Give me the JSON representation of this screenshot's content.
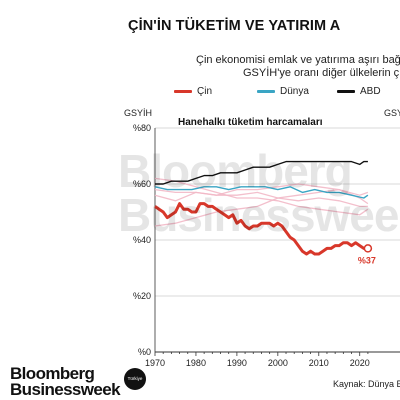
{
  "header": {
    "title": "ÇİN'İN TÜKETİM VE YATIRIM A",
    "subtitle_line1": "Çin ekonomisi emlak ve yatırıma aşırı bağ",
    "subtitle_line2": "GSYİH'ye oranı diğer ülkelerin ç"
  },
  "watermark": {
    "line1": "Bloomberg",
    "line2": "Businessweek"
  },
  "branding": {
    "logo_line1": "Bloomberg",
    "logo_line2": "Businessweek",
    "badge": "Türkiye"
  },
  "source": "Kaynak: Dünya B",
  "colors": {
    "cin": "#d8372a",
    "dunya": "#3aa5c4",
    "abd": "#111111",
    "background_lines": "#f2b8c6"
  },
  "chart_data": {
    "type": "line",
    "title": "Hanehalkı tüketim harcamaları",
    "ylabel": "GSYİH",
    "ylabel_right": "GSY",
    "xlim": [
      1970,
      2023
    ],
    "ylim": [
      0,
      80
    ],
    "x_ticks": [
      1970,
      1980,
      1990,
      2000,
      2010,
      2020
    ],
    "y_ticks": [
      0,
      20,
      40,
      60,
      80
    ],
    "y_tick_labels": [
      "%0",
      "%20",
      "%40",
      "%60",
      "%80"
    ],
    "grid": true,
    "legend_position": "top",
    "end_label": "%37",
    "series": [
      {
        "name": "Çin",
        "color": "#d8372a",
        "x": [
          1970,
          1971,
          1972,
          1973,
          1974,
          1975,
          1976,
          1977,
          1978,
          1979,
          1980,
          1981,
          1982,
          1983,
          1984,
          1985,
          1986,
          1987,
          1988,
          1989,
          1990,
          1991,
          1992,
          1993,
          1994,
          1995,
          1996,
          1997,
          1998,
          1999,
          2000,
          2001,
          2002,
          2003,
          2004,
          2005,
          2006,
          2007,
          2008,
          2009,
          2010,
          2011,
          2012,
          2013,
          2014,
          2015,
          2016,
          2017,
          2018,
          2019,
          2020,
          2021,
          2022
        ],
        "values": [
          52,
          51,
          50,
          48,
          49,
          50,
          53,
          51,
          51,
          50,
          50,
          53,
          53,
          52,
          52,
          51,
          50,
          49,
          48,
          49,
          46,
          47,
          45,
          44,
          45,
          45,
          46,
          46,
          46,
          45,
          46,
          45,
          43,
          41,
          40,
          38,
          36,
          35,
          36,
          35,
          35,
          36,
          37,
          37,
          38,
          38,
          39,
          39,
          38,
          39,
          38,
          37,
          37
        ]
      },
      {
        "name": "Dünya",
        "color": "#3aa5c4",
        "x": [
          1970,
          1973,
          1976,
          1979,
          1982,
          1985,
          1988,
          1991,
          1994,
          1997,
          2000,
          2003,
          2006,
          2009,
          2012,
          2015,
          2018,
          2021,
          2022
        ],
        "values": [
          59,
          58,
          58,
          58,
          59,
          59,
          58,
          59,
          59,
          59,
          58,
          59,
          57,
          58,
          57,
          57,
          56,
          55,
          56
        ]
      },
      {
        "name": "ABD",
        "color": "#111111",
        "x": [
          1970,
          1972,
          1974,
          1976,
          1978,
          1980,
          1982,
          1984,
          1986,
          1988,
          1990,
          1992,
          1994,
          1996,
          1998,
          2000,
          2002,
          2004,
          2006,
          2008,
          2010,
          2012,
          2014,
          2016,
          2018,
          2020,
          2021,
          2022
        ],
        "values": [
          60,
          60,
          61,
          61,
          61,
          62,
          63,
          63,
          64,
          64,
          64,
          65,
          66,
          66,
          66,
          67,
          68,
          68,
          68,
          68,
          68,
          68,
          68,
          68,
          68,
          67,
          68,
          68
        ]
      },
      {
        "x": [
          1970,
          1975,
          1980,
          1985,
          1990,
          1995,
          2000,
          2005,
          2010,
          2015,
          2020,
          2022
        ],
        "values": [
          58,
          57,
          57,
          56,
          56,
          57,
          55,
          54,
          55,
          54,
          52,
          52
        ]
      },
      {
        "x": [
          1970,
          1975,
          1980,
          1985,
          1990,
          1995,
          2000,
          2005,
          2010,
          2015,
          2020,
          2022
        ],
        "values": [
          62,
          61,
          59,
          57,
          55,
          55,
          54,
          52,
          51,
          50,
          49,
          51
        ]
      },
      {
        "x": [
          1970,
          1975,
          1980,
          1985,
          1990,
          1995,
          2000,
          2005,
          2010,
          2015,
          2020,
          2022
        ],
        "values": [
          45,
          46,
          48,
          50,
          51,
          52,
          55,
          56,
          57,
          58,
          56,
          57
        ]
      },
      {
        "x": [
          1970,
          1975,
          1980,
          1985,
          1990,
          1995,
          2000,
          2005,
          2010,
          2015,
          2020,
          2022
        ],
        "values": [
          56,
          54,
          57,
          56,
          58,
          58,
          59,
          60,
          59,
          58,
          55,
          53
        ]
      }
    ]
  }
}
